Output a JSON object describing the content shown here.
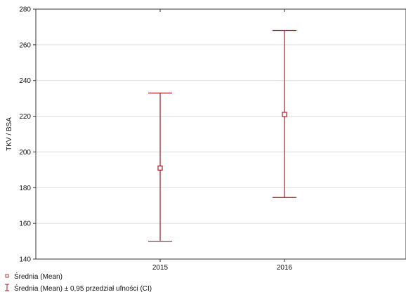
{
  "chart_data": {
    "type": "scatter",
    "title": "",
    "xlabel": "",
    "ylabel": "TKV / BSA",
    "categories": [
      "2015",
      "2016"
    ],
    "series": [
      {
        "mean": [
          191,
          221
        ],
        "ci_low": [
          150,
          174.5
        ],
        "ci_high": [
          233,
          268
        ]
      }
    ],
    "yticks": [
      140,
      160,
      180,
      200,
      220,
      240,
      260,
      280
    ],
    "ylim": [
      140,
      280
    ],
    "grid": true,
    "legend_position": "bottom-left",
    "legend": [
      {
        "label": "Średnia (Mean)"
      },
      {
        "label": "Średnia (Mean) ± 0,95 przedział ufności (CI)"
      }
    ],
    "colors": {
      "series": "#a31f24",
      "grid": "#dcdcdc",
      "axis": "#333333"
    }
  }
}
